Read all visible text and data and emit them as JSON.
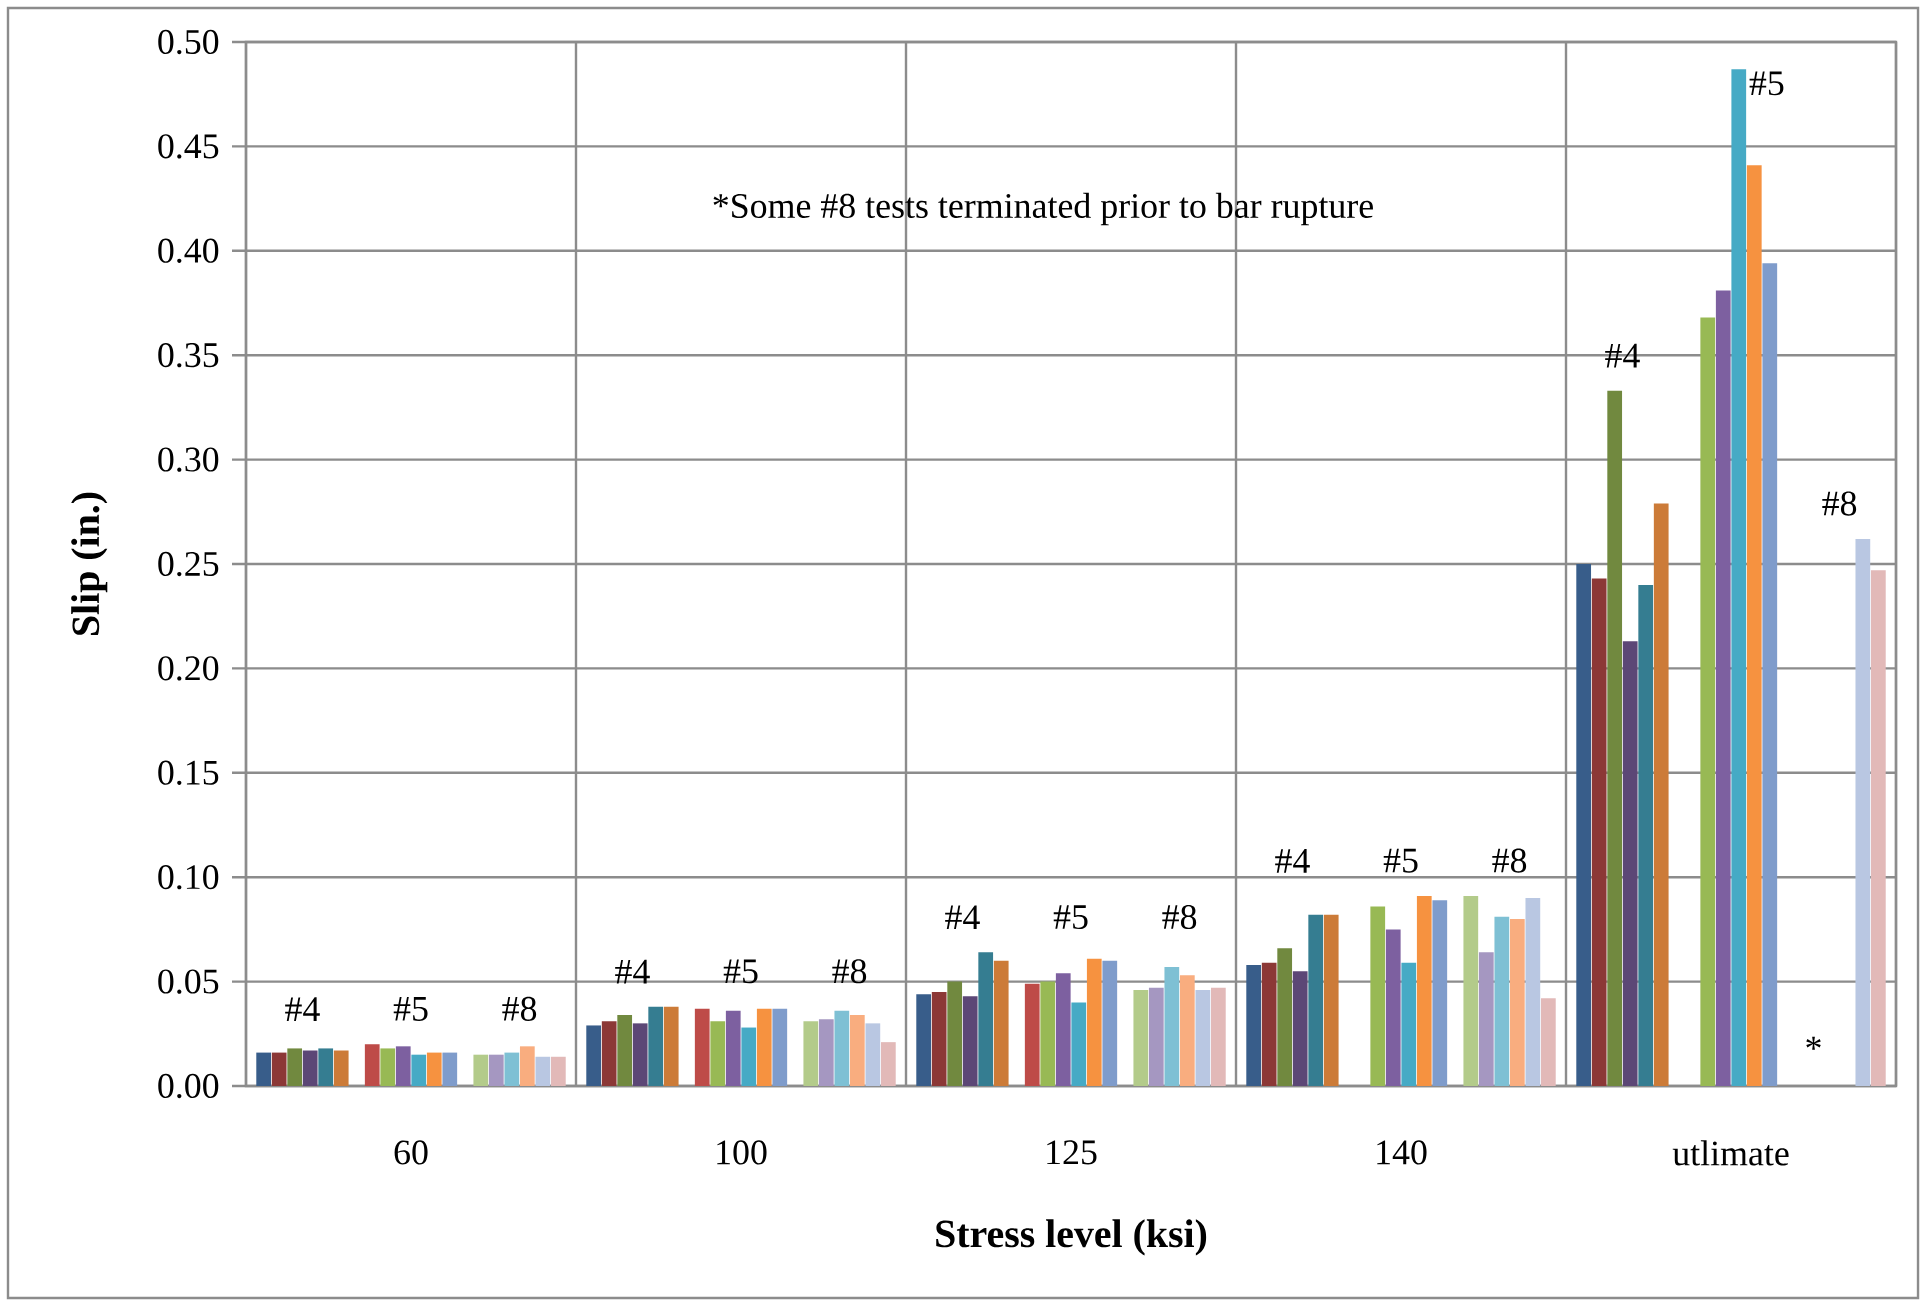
{
  "chart_data": {
    "type": "bar",
    "xlabel": "Stress level (ksi)",
    "ylabel": "Slip (in.)",
    "categories": [
      "60",
      "100",
      "125",
      "140",
      "utlimate"
    ],
    "ylim": [
      0,
      0.5
    ],
    "yticks": [
      {
        "value": 0,
        "label": "0.00"
      },
      {
        "value": 0.05,
        "label": "0.05"
      },
      {
        "value": 0.1,
        "label": "0.10"
      },
      {
        "value": 0.15,
        "label": "0.15"
      },
      {
        "value": 0.2,
        "label": "0.20"
      },
      {
        "value": 0.25,
        "label": "0.25"
      },
      {
        "value": 0.3,
        "label": "0.30"
      },
      {
        "value": 0.35,
        "label": "0.35"
      },
      {
        "value": 0.4,
        "label": "0.40"
      },
      {
        "value": 0.45,
        "label": "0.45"
      },
      {
        "value": 0.5,
        "label": "0.50"
      }
    ],
    "grid": true,
    "series": [
      {
        "color": "#385d8a",
        "values": [
          0.016,
          0.029,
          0.044,
          0.058,
          0.25
        ]
      },
      {
        "color": "#8c3836",
        "values": [
          0.016,
          0.031,
          0.045,
          0.059,
          0.243
        ]
      },
      {
        "color": "#71893f",
        "values": [
          0.018,
          0.034,
          0.05,
          0.066,
          0.333
        ]
      },
      {
        "color": "#5c4776",
        "values": [
          0.017,
          0.03,
          0.043,
          0.055,
          0.213
        ]
      },
      {
        "color": "#357d91",
        "values": [
          0.018,
          0.038,
          0.064,
          0.082,
          0.24
        ]
      },
      {
        "color": "#cc7b38",
        "values": [
          0.017,
          0.038,
          0.06,
          0.082,
          0.279
        ]
      },
      {
        "color": "#be4b48",
        "values": [
          0.02,
          0.037,
          0.049,
          null,
          null
        ]
      },
      {
        "color": "#98b954",
        "values": [
          0.018,
          0.031,
          0.05,
          0.086,
          0.368
        ]
      },
      {
        "color": "#7d60a0",
        "values": [
          0.019,
          0.036,
          0.054,
          0.075,
          0.381
        ]
      },
      {
        "color": "#46aac5",
        "values": [
          0.015,
          0.028,
          0.04,
          0.059,
          0.487
        ]
      },
      {
        "color": "#f69240",
        "values": [
          0.016,
          0.037,
          0.061,
          0.091,
          0.441
        ]
      },
      {
        "color": "#7f9ccb",
        "values": [
          0.016,
          0.037,
          0.06,
          0.089,
          0.394
        ]
      },
      {
        "color": "#b3cb8a",
        "values": [
          0.015,
          0.031,
          0.046,
          0.091,
          null
        ]
      },
      {
        "color": "#a597c1",
        "values": [
          0.015,
          0.032,
          0.047,
          0.064,
          null
        ]
      },
      {
        "color": "#7ec0d4",
        "values": [
          0.016,
          0.036,
          0.057,
          0.081,
          null
        ]
      },
      {
        "color": "#f9ad7f",
        "values": [
          0.019,
          0.034,
          0.053,
          0.08,
          null
        ]
      },
      {
        "color": "#b9c7e2",
        "values": [
          0.014,
          0.03,
          0.046,
          0.09,
          0.262
        ]
      },
      {
        "color": "#e2b9b8",
        "values": [
          0.014,
          0.021,
          0.047,
          0.042,
          0.247
        ]
      }
    ],
    "annotations": [
      "*Some #8 tests terminated prior to bar rupture",
      "*",
      "#4",
      "#5",
      "#8",
      "#4",
      "#5",
      "#8",
      "#4",
      "#5",
      "#8",
      "#4",
      "#5",
      "#8",
      "#4",
      "#5",
      "#8"
    ]
  }
}
